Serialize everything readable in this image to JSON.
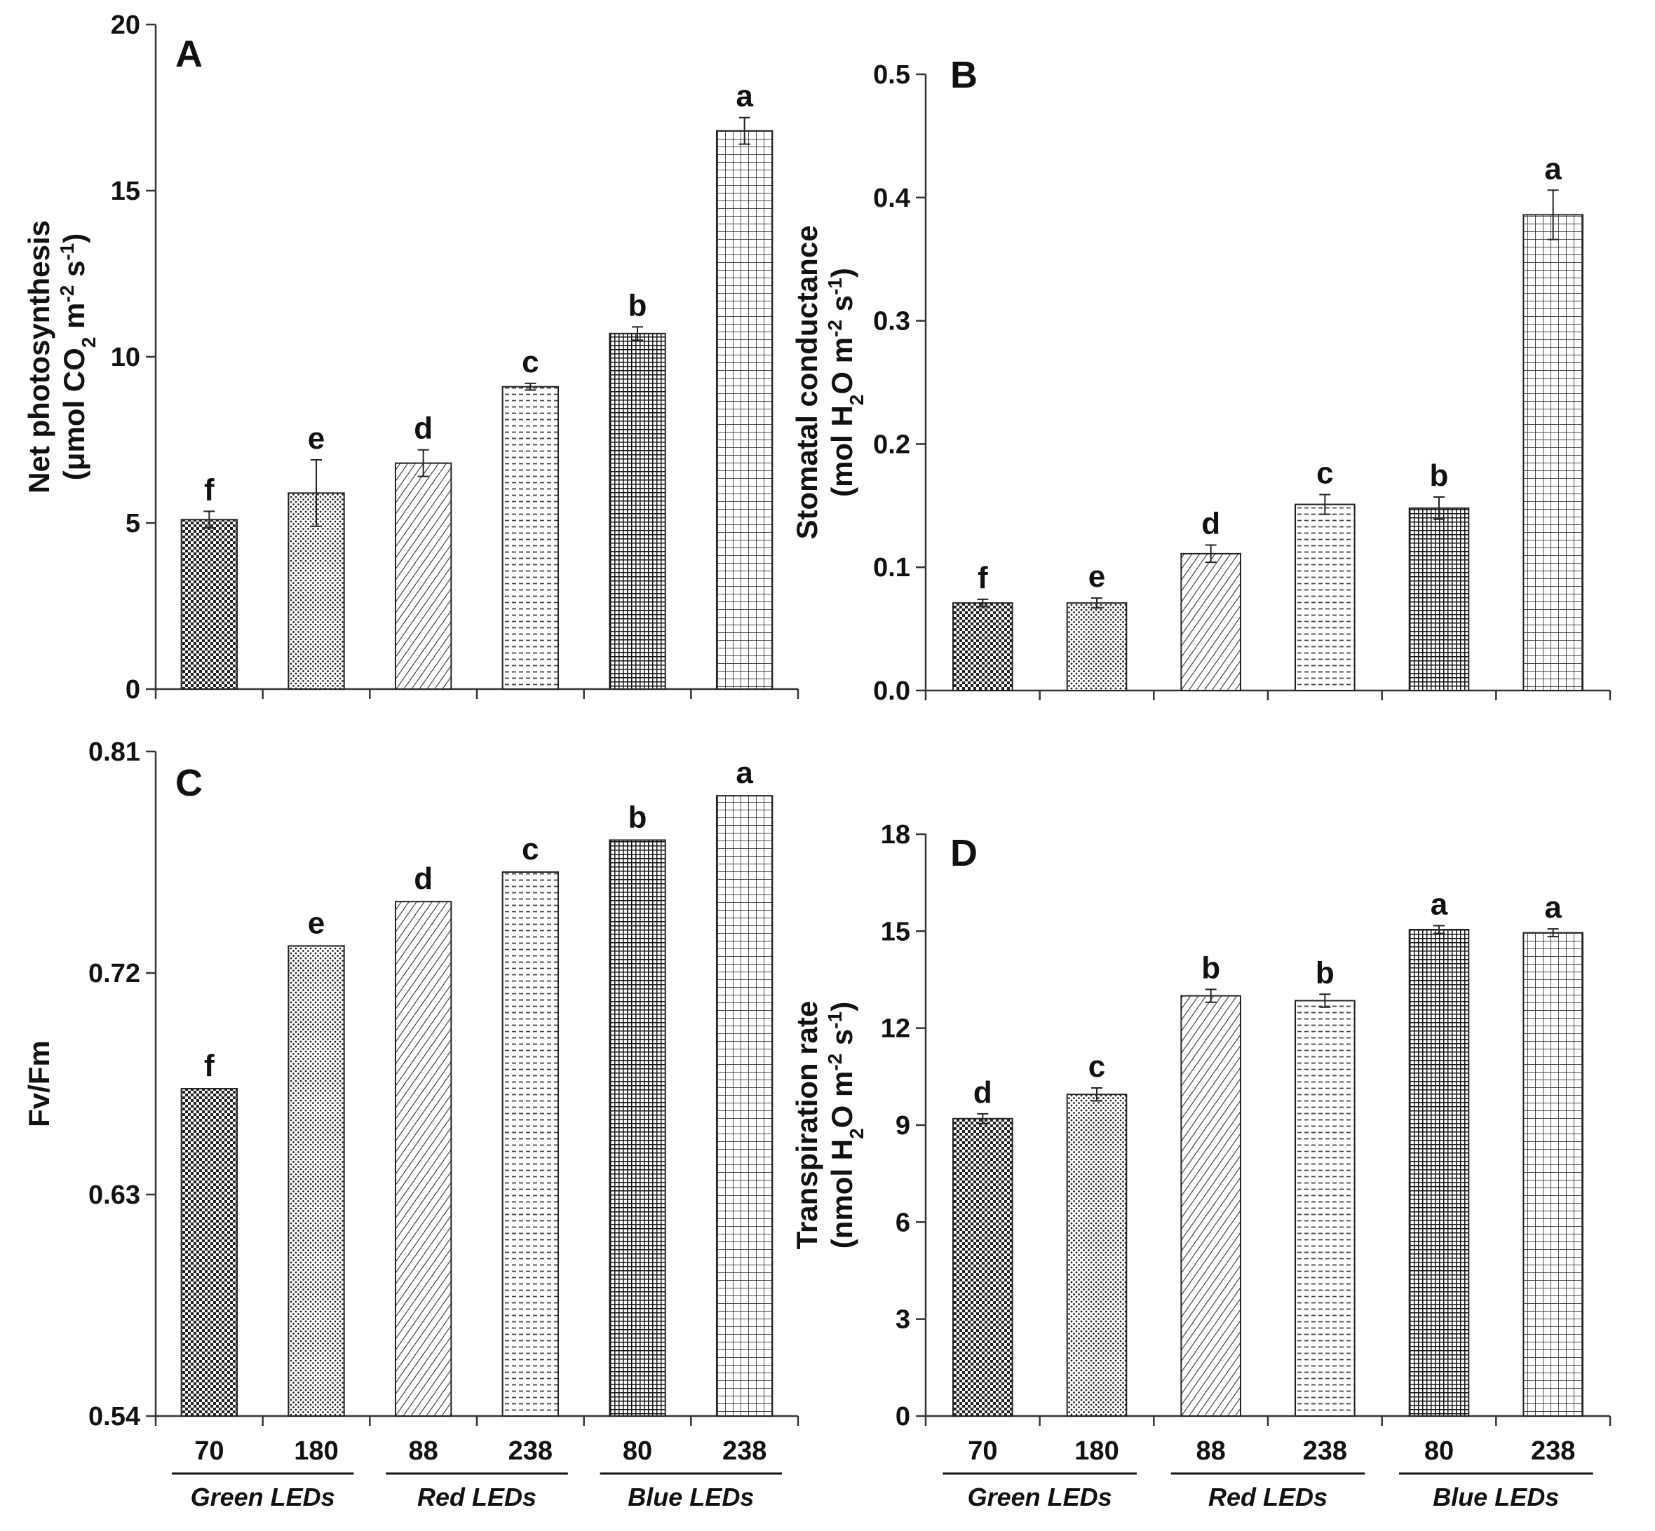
{
  "chart_data": [
    {
      "panel": "A",
      "type": "bar",
      "categories": [
        "70",
        "180",
        "88",
        "238",
        "80",
        "238"
      ],
      "values": [
        5.1,
        5.9,
        6.8,
        9.1,
        10.7,
        16.8
      ],
      "errors": [
        0.25,
        1.0,
        0.4,
        0.1,
        0.2,
        0.4
      ],
      "letters": [
        "f",
        "e",
        "d",
        "c",
        "b",
        "a"
      ],
      "ylim": [
        0,
        20
      ],
      "yticks": [
        "0",
        "5",
        "10",
        "15",
        "20"
      ],
      "ylabel_lines": [
        "Net photosynthesis",
        "(μmol CO",
        "2",
        " m",
        "-2",
        " s",
        "-1",
        ")"
      ]
    },
    {
      "panel": "B",
      "type": "bar",
      "categories": [
        "70",
        "180",
        "88",
        "238",
        "80",
        "238"
      ],
      "values": [
        0.071,
        0.071,
        0.111,
        0.151,
        0.148,
        0.386
      ],
      "errors": [
        0.003,
        0.004,
        0.007,
        0.008,
        0.009,
        0.02
      ],
      "letters": [
        "f",
        "e",
        "d",
        "c",
        "b",
        "a"
      ],
      "ylim": [
        0,
        0.5
      ],
      "yticks": [
        "0.0",
        "0.1",
        "0.2",
        "0.3",
        "0.4",
        "0.5"
      ],
      "ylabel_lines": [
        "Stomatal conductance",
        "(mol H",
        "2",
        "O m",
        "-2",
        " s",
        "-1",
        ")"
      ]
    },
    {
      "panel": "C",
      "type": "bar",
      "categories": [
        "70",
        "180",
        "88",
        "238",
        "80",
        "238"
      ],
      "values": [
        0.673,
        0.731,
        0.749,
        0.761,
        0.774,
        0.792
      ],
      "errors": [
        0,
        0,
        0,
        0,
        0,
        0
      ],
      "letters": [
        "f",
        "e",
        "d",
        "c",
        "b",
        "a"
      ],
      "ylim": [
        0.54,
        0.81
      ],
      "yticks": [
        "0.54",
        "0.63",
        "0.72",
        "0.81"
      ],
      "ylabel_lines": [
        "Fv/Fm"
      ]
    },
    {
      "panel": "D",
      "type": "bar",
      "categories": [
        "70",
        "180",
        "88",
        "238",
        "80",
        "238"
      ],
      "values": [
        9.2,
        9.95,
        13.0,
        12.85,
        15.05,
        14.95
      ],
      "errors": [
        0.15,
        0.2,
        0.2,
        0.2,
        0.12,
        0.12
      ],
      "letters": [
        "d",
        "c",
        "b",
        "b",
        "a",
        "a"
      ],
      "ylim": [
        0,
        18
      ],
      "yticks": [
        "0",
        "3",
        "6",
        "9",
        "12",
        "15",
        "18"
      ],
      "ylabel_lines": [
        "Transpiration rate",
        "(nmol H",
        "2",
        "O m",
        "-2",
        " s",
        "-1",
        ")"
      ]
    }
  ],
  "groups": [
    "Green LEDs",
    "Red LEDs",
    "Blue LEDs"
  ]
}
